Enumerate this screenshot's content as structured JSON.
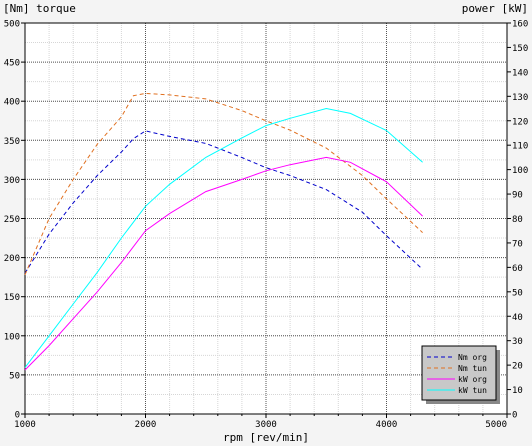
{
  "chart_data": {
    "type": "line",
    "left_title": "[Nm] torque",
    "right_title": "power [kW]",
    "xlabel": "rpm [rev/min]",
    "xlim": [
      1000,
      5000
    ],
    "x_major_ticks": [
      1000,
      2000,
      3000,
      4000,
      5000
    ],
    "ylim_left": [
      0,
      500
    ],
    "y_left_ticks": [
      0,
      50,
      100,
      150,
      200,
      250,
      300,
      350,
      400,
      450,
      500
    ],
    "ylim_right": [
      0,
      160
    ],
    "y_right_ticks": [
      0,
      10,
      20,
      30,
      40,
      50,
      60,
      70,
      80,
      90,
      100,
      110,
      120,
      130,
      140,
      150,
      160
    ],
    "grid": true,
    "legend_position": "bottom-right",
    "series": [
      {
        "name": "Nm org",
        "axis": "left",
        "color": "#0000cc",
        "dash": true,
        "x": [
          1000,
          1200,
          1400,
          1600,
          1800,
          1900,
          2000,
          2200,
          2500,
          2800,
          3000,
          3200,
          3500,
          3800,
          4000,
          4300
        ],
        "values": [
          180,
          230,
          270,
          305,
          335,
          352,
          362,
          355,
          346,
          328,
          315,
          305,
          287,
          258,
          228,
          185
        ]
      },
      {
        "name": "Nm tun",
        "axis": "left",
        "color": "#e07020",
        "dash": true,
        "x": [
          1000,
          1200,
          1400,
          1600,
          1800,
          1900,
          2000,
          2200,
          2500,
          2800,
          3000,
          3200,
          3500,
          3800,
          4000,
          4300
        ],
        "values": [
          178,
          250,
          300,
          345,
          380,
          407,
          410,
          408,
          403,
          388,
          375,
          363,
          340,
          305,
          275,
          232
        ]
      },
      {
        "name": "kW org",
        "axis": "right",
        "color": "#ff00ff",
        "dash": false,
        "x": [
          1000,
          1200,
          1400,
          1600,
          1800,
          2000,
          2200,
          2500,
          2800,
          3000,
          3200,
          3500,
          3700,
          4000,
          4300
        ],
        "values": [
          18,
          28,
          39,
          50,
          62,
          75,
          82,
          91,
          96,
          99.5,
          102,
          105,
          103,
          95,
          81
        ]
      },
      {
        "name": "kW tun",
        "axis": "right",
        "color": "#00ffff",
        "dash": false,
        "x": [
          1000,
          1200,
          1400,
          1600,
          1800,
          2000,
          2200,
          2500,
          2800,
          3000,
          3200,
          3500,
          3700,
          4000,
          4300
        ],
        "values": [
          19,
          32,
          45,
          58,
          72,
          85,
          94,
          105,
          113,
          118,
          121,
          125,
          123,
          116,
          103
        ]
      }
    ]
  }
}
